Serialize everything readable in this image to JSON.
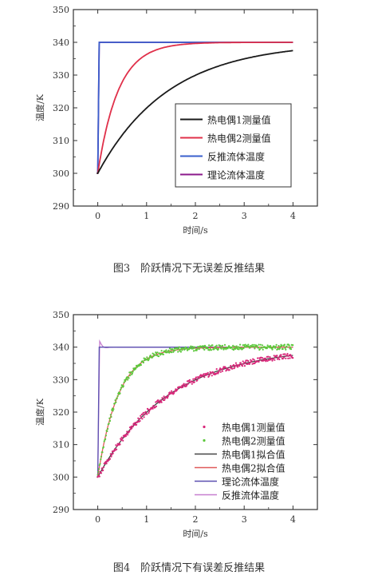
{
  "chart_data": [
    {
      "type": "line",
      "caption": "图3　阶跃情况下无误差反推结果",
      "xlabel": "时间/s",
      "ylabel": "温度/K",
      "xlim": [
        -0.5,
        4.5
      ],
      "ylim": [
        290,
        350
      ],
      "xticks": [
        "0",
        "1",
        "2",
        "3",
        "4"
      ],
      "yticks": [
        "290",
        "300",
        "310",
        "320",
        "330",
        "340",
        "350"
      ],
      "legend_position": "lower-right",
      "series": [
        {
          "name": "热电偶1测量值",
          "color": "#1a1a1a",
          "model": "first_order",
          "y0": 300,
          "yinf": 340,
          "tau": 1.45
        },
        {
          "name": "热电偶2测量值",
          "color": "#e0304a",
          "model": "first_order",
          "y0": 300,
          "yinf": 340,
          "tau": 0.42
        },
        {
          "name": "反推流体温度",
          "color": "#3a5fcd",
          "model": "step",
          "y0": 300,
          "yinf": 340
        },
        {
          "name": "理论流体温度",
          "color": "#8b1a8b",
          "model": "step",
          "y0": 300,
          "yinf": 340
        }
      ]
    },
    {
      "type": "line",
      "caption": "图4　阶跃情况下有误差反推结果",
      "xlabel": "时间/s",
      "ylabel": "温度/K",
      "xlim": [
        -0.5,
        4.5
      ],
      "ylim": [
        290,
        350
      ],
      "xticks": [
        "0",
        "1",
        "2",
        "3",
        "4"
      ],
      "yticks": [
        "290",
        "300",
        "310",
        "320",
        "330",
        "340",
        "350"
      ],
      "legend_position": "lower-right",
      "series": [
        {
          "name": "热电偶1测量值",
          "color": "#d8287a",
          "marker": "dot",
          "model": "first_order",
          "y0": 300,
          "yinf": 340,
          "tau": 1.45
        },
        {
          "name": "热电偶2测量值",
          "color": "#5cc83c",
          "marker": "dot",
          "model": "first_order",
          "y0": 300,
          "yinf": 340,
          "tau": 0.42
        },
        {
          "name": "热电偶1拟合值",
          "color": "#444444",
          "model": "first_order",
          "y0": 300,
          "yinf": 340,
          "tau": 1.45
        },
        {
          "name": "热电偶2拟合值",
          "color": "#e05a5a",
          "model": "first_order",
          "y0": 300,
          "yinf": 340,
          "tau": 0.42
        },
        {
          "name": "理论流体温度",
          "color": "#5a4fb0",
          "model": "step",
          "y0": 300,
          "yinf": 340
        },
        {
          "name": "反推流体温度",
          "color": "#c77fcf",
          "model": "step_overshoot",
          "y0": 300,
          "yinf": 340
        }
      ]
    }
  ]
}
